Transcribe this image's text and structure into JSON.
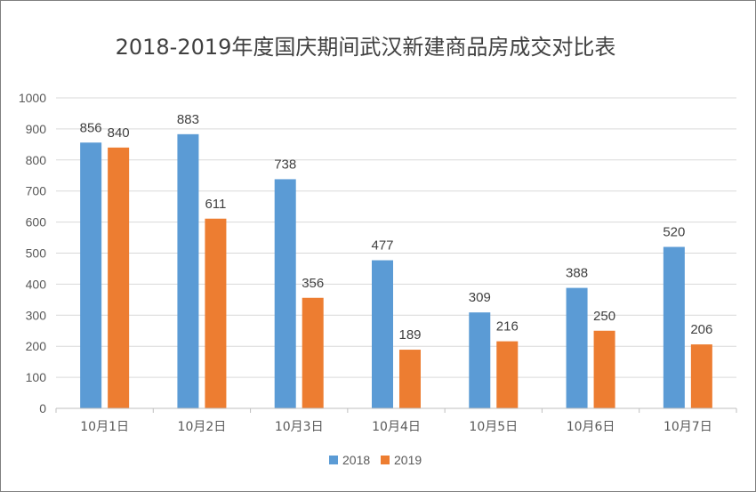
{
  "chart_data": {
    "type": "bar",
    "title": "2018-2019年度国庆期间武汉新建商品房成交对比表",
    "categories": [
      "10月1日",
      "10月2日",
      "10月3日",
      "10月4日",
      "10月5日",
      "10月6日",
      "10月7日"
    ],
    "series": [
      {
        "name": "2018",
        "color": "#5B9BD5",
        "values": [
          856,
          883,
          738,
          477,
          309,
          388,
          520
        ]
      },
      {
        "name": "2019",
        "color": "#ED7D31",
        "values": [
          840,
          611,
          356,
          189,
          216,
          250,
          206
        ]
      }
    ],
    "ylim": [
      0,
      1000
    ],
    "yticks": [
      0,
      100,
      200,
      300,
      400,
      500,
      600,
      700,
      800,
      900,
      1000
    ],
    "grid": true,
    "legend_position": "bottom",
    "data_labels": true
  }
}
